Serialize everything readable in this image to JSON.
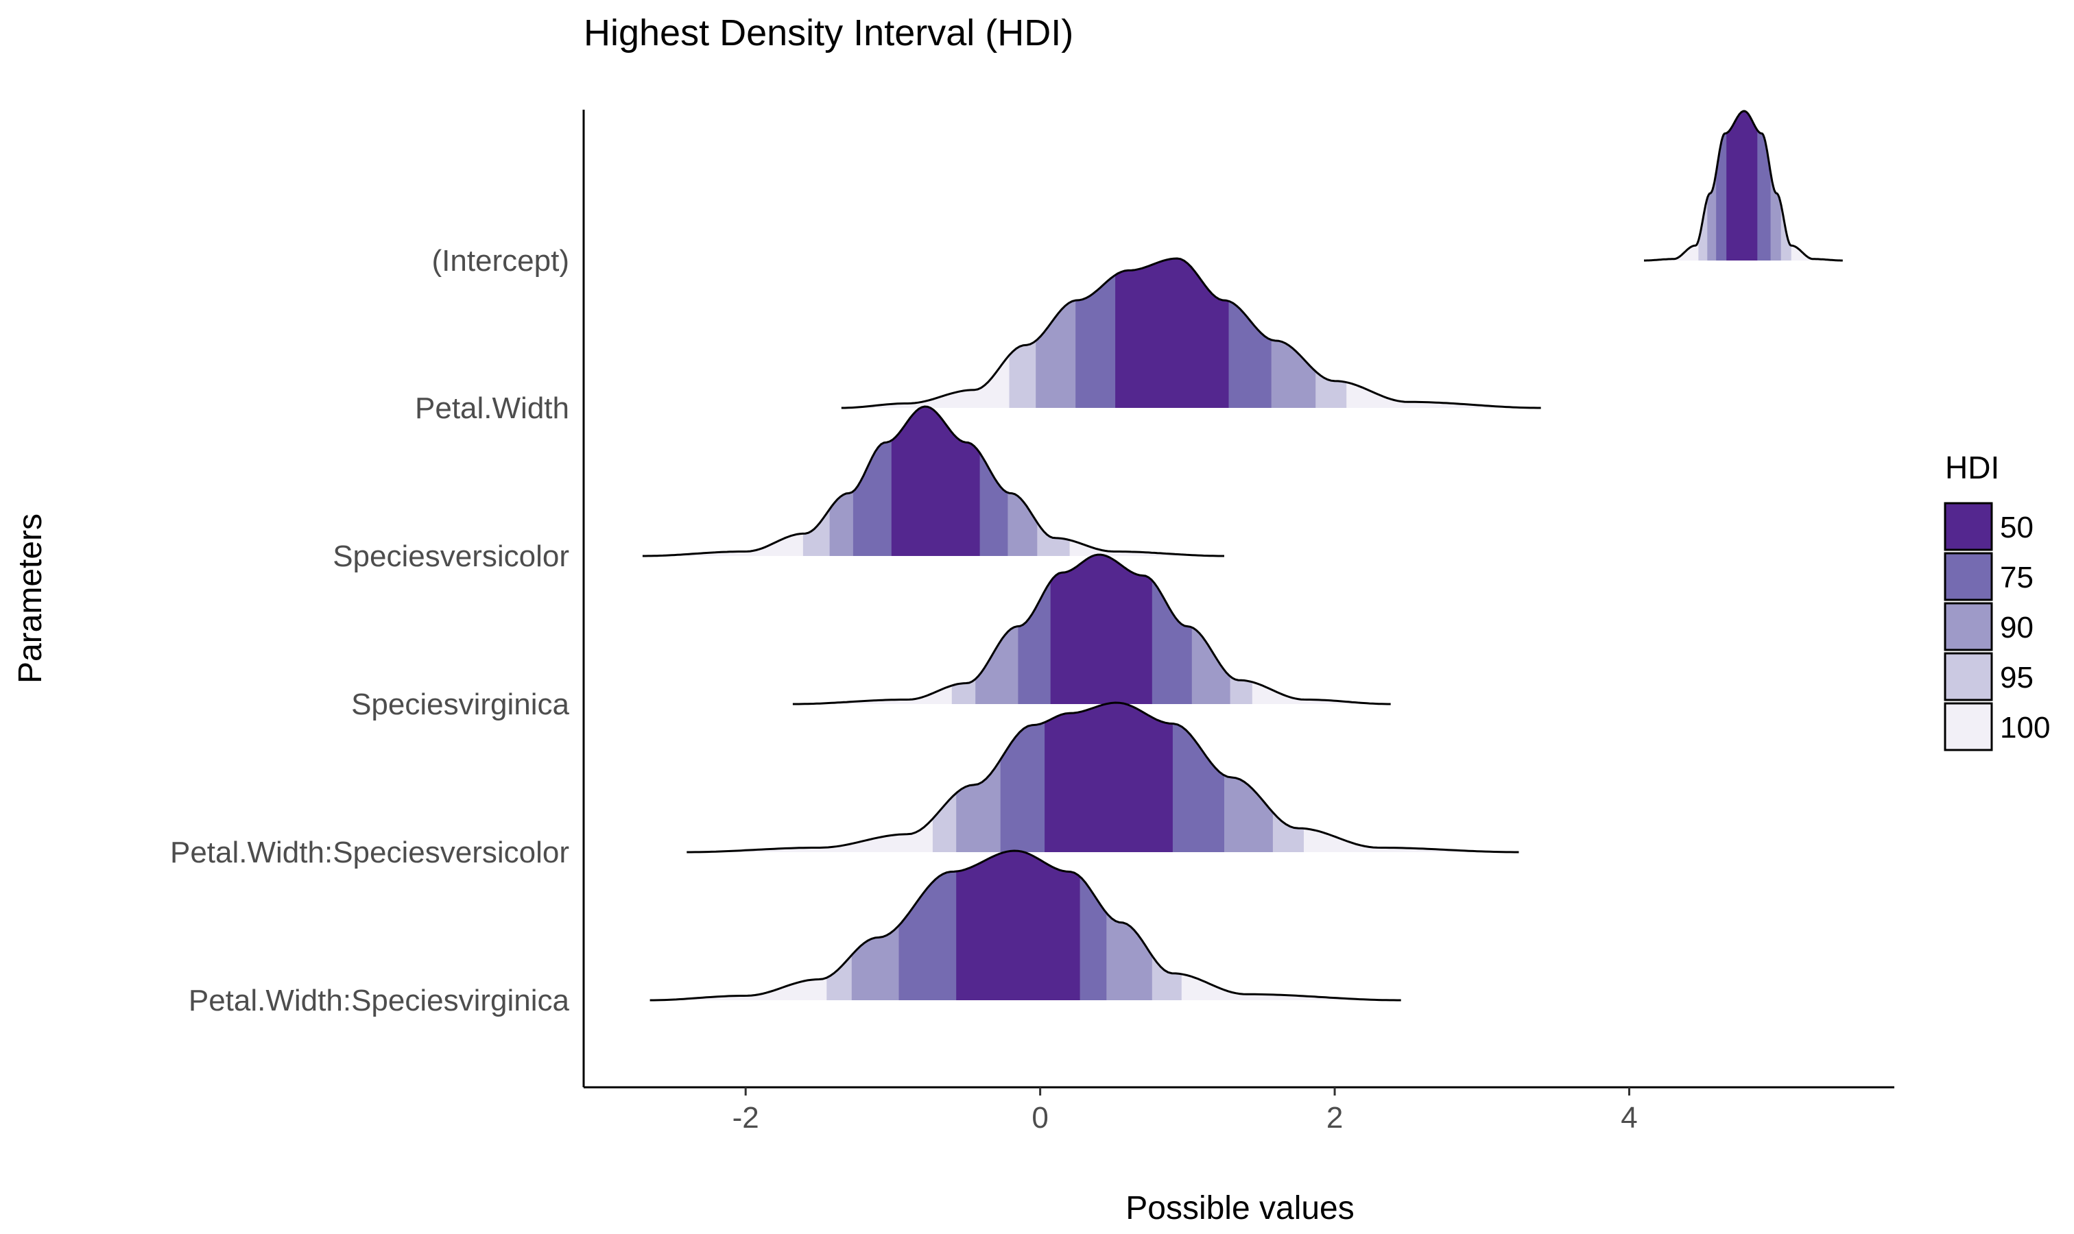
{
  "chart_data": {
    "type": "ridgeline-density",
    "title": "Highest Density Interval (HDI)",
    "xlabel": "Possible values",
    "ylabel": "Parameters",
    "xlim": [
      -3.1,
      5.8
    ],
    "x_ticks": [
      -2,
      0,
      2,
      4
    ],
    "x_tick_labels": [
      "-2",
      "0",
      "2",
      "4"
    ],
    "grid": false,
    "legend": {
      "title": "HDI",
      "position": "right",
      "entries": [
        {
          "label": "50",
          "level": 50,
          "color": "#54278f"
        },
        {
          "label": "75",
          "level": 75,
          "color": "#756bb1"
        },
        {
          "label": "90",
          "level": 90,
          "color": "#9e9ac8"
        },
        {
          "label": "95",
          "level": 95,
          "color": "#cbc9e2"
        },
        {
          "label": "100",
          "level": 100,
          "color": "#f2f0f7"
        }
      ]
    },
    "series": [
      {
        "name": "(Intercept)",
        "range": [
          4.1,
          5.45
        ],
        "peak": 4.78,
        "peak_height": 1.0,
        "hdi": {
          "50": [
            4.66,
            4.87
          ],
          "75": [
            4.59,
            4.96
          ],
          "90": [
            4.53,
            5.03
          ],
          "95": [
            4.47,
            5.1
          ]
        },
        "density": [
          [
            4.1,
            0.0
          ],
          [
            4.3,
            0.01
          ],
          [
            4.45,
            0.1
          ],
          [
            4.55,
            0.45
          ],
          [
            4.65,
            0.85
          ],
          [
            4.78,
            1.0
          ],
          [
            4.9,
            0.85
          ],
          [
            5.0,
            0.45
          ],
          [
            5.1,
            0.1
          ],
          [
            5.25,
            0.01
          ],
          [
            5.45,
            0.0
          ]
        ]
      },
      {
        "name": "Petal.Width",
        "range": [
          -1.35,
          3.4
        ],
        "peak": 0.93,
        "peak_height": 1.0,
        "hdi": {
          "50": [
            0.51,
            1.28
          ],
          "75": [
            0.24,
            1.57
          ],
          "90": [
            -0.03,
            1.87
          ],
          "95": [
            -0.21,
            2.08
          ]
        },
        "density": [
          [
            -1.35,
            0.0
          ],
          [
            -0.9,
            0.03
          ],
          [
            -0.45,
            0.12
          ],
          [
            -0.1,
            0.42
          ],
          [
            0.25,
            0.72
          ],
          [
            0.6,
            0.92
          ],
          [
            0.93,
            1.0
          ],
          [
            1.25,
            0.72
          ],
          [
            1.6,
            0.45
          ],
          [
            2.0,
            0.18
          ],
          [
            2.5,
            0.04
          ],
          [
            3.4,
            0.0
          ]
        ]
      },
      {
        "name": "Speciesversicolor",
        "range": [
          -2.7,
          1.25
        ],
        "peak": -0.78,
        "peak_height": 1.0,
        "hdi": {
          "50": [
            -1.01,
            -0.41
          ],
          "75": [
            -1.27,
            -0.22
          ],
          "90": [
            -1.43,
            -0.02
          ],
          "95": [
            -1.61,
            0.2
          ]
        },
        "density": [
          [
            -2.7,
            0.0
          ],
          [
            -2.0,
            0.03
          ],
          [
            -1.6,
            0.15
          ],
          [
            -1.3,
            0.42
          ],
          [
            -1.05,
            0.76
          ],
          [
            -0.78,
            1.0
          ],
          [
            -0.5,
            0.76
          ],
          [
            -0.2,
            0.42
          ],
          [
            0.1,
            0.12
          ],
          [
            0.5,
            0.03
          ],
          [
            1.25,
            0.0
          ]
        ]
      },
      {
        "name": "Speciesvirginica",
        "range": [
          -1.68,
          2.38
        ],
        "peak": 0.4,
        "peak_height": 1.0,
        "hdi": {
          "50": [
            0.07,
            0.76
          ],
          "75": [
            -0.15,
            1.03
          ],
          "90": [
            -0.44,
            1.29
          ],
          "95": [
            -0.6,
            1.44
          ]
        },
        "density": [
          [
            -1.68,
            0.0
          ],
          [
            -0.9,
            0.03
          ],
          [
            -0.5,
            0.14
          ],
          [
            -0.15,
            0.52
          ],
          [
            0.15,
            0.88
          ],
          [
            0.4,
            1.0
          ],
          [
            0.7,
            0.86
          ],
          [
            1.0,
            0.52
          ],
          [
            1.35,
            0.16
          ],
          [
            1.8,
            0.03
          ],
          [
            2.38,
            0.0
          ]
        ]
      },
      {
        "name": "Petal.Width:Speciesversicolor",
        "range": [
          -2.4,
          3.25
        ],
        "peak": 0.52,
        "peak_height": 1.0,
        "hdi": {
          "50": [
            0.03,
            0.9
          ],
          "75": [
            -0.27,
            1.25
          ],
          "90": [
            -0.57,
            1.58
          ],
          "95": [
            -0.73,
            1.79
          ]
        },
        "density": [
          [
            -2.4,
            0.0
          ],
          [
            -1.5,
            0.03
          ],
          [
            -0.9,
            0.12
          ],
          [
            -0.45,
            0.45
          ],
          [
            -0.05,
            0.85
          ],
          [
            0.2,
            0.93
          ],
          [
            0.52,
            1.0
          ],
          [
            0.9,
            0.86
          ],
          [
            1.3,
            0.5
          ],
          [
            1.75,
            0.16
          ],
          [
            2.3,
            0.03
          ],
          [
            3.25,
            0.0
          ]
        ]
      },
      {
        "name": "Petal.Width:Speciesvirginica",
        "range": [
          -2.65,
          2.45
        ],
        "peak": -0.17,
        "peak_height": 1.0,
        "hdi": {
          "50": [
            -0.57,
            0.27
          ],
          "75": [
            -0.96,
            0.45
          ],
          "90": [
            -1.28,
            0.76
          ],
          "95": [
            -1.45,
            0.96
          ]
        },
        "density": [
          [
            -2.65,
            0.0
          ],
          [
            -2.0,
            0.03
          ],
          [
            -1.5,
            0.14
          ],
          [
            -1.1,
            0.42
          ],
          [
            -0.6,
            0.86
          ],
          [
            -0.17,
            1.0
          ],
          [
            0.2,
            0.86
          ],
          [
            0.55,
            0.52
          ],
          [
            0.9,
            0.18
          ],
          [
            1.4,
            0.04
          ],
          [
            2.45,
            0.0
          ]
        ]
      }
    ]
  }
}
